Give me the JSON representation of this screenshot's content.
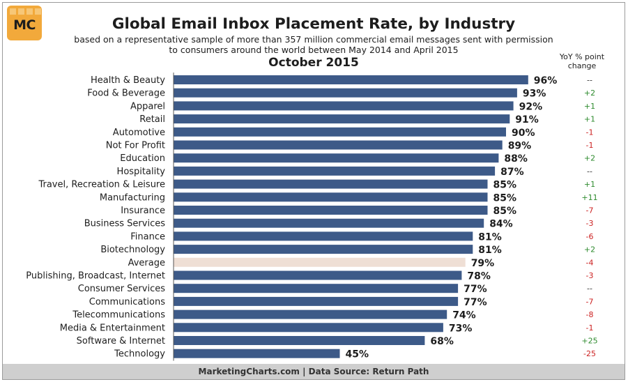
{
  "logo": {
    "text": "MC"
  },
  "title": "Global Email Inbox Placement Rate, by Industry",
  "subtitle_line1": "based on a representative sample of more than 357 million commercial email messages sent with permission",
  "subtitle_line2": "to consumers around the world between May 2014 and April 2015",
  "period": "October 2015",
  "yoy_header_line1": "YoY % point",
  "yoy_header_line2": "change",
  "footer": "MarketingCharts.com | Data Source: Return Path",
  "colors": {
    "bar": "#3d5a88",
    "average_bar": "#efdfd5",
    "positive": "#2e8b2e",
    "negative": "#cc2222",
    "neutral": "#333333"
  },
  "chart_data": {
    "type": "bar",
    "orientation": "horizontal",
    "categories": [
      "Health & Beauty",
      "Food & Beverage",
      "Apparel",
      "Retail",
      "Automotive",
      "Not For Profit",
      "Education",
      "Hospitality",
      "Travel, Recreation & Leisure",
      "Manufacturing",
      "Insurance",
      "Business Services",
      "Finance",
      "Biotechnology",
      "Average",
      "Publishing, Broadcast, Internet",
      "Consumer Services",
      "Communications",
      "Telecommunications",
      "Media & Entertainment",
      "Software & Internet",
      "Technology"
    ],
    "values": [
      96,
      93,
      92,
      91,
      90,
      89,
      88,
      87,
      85,
      85,
      85,
      84,
      81,
      81,
      79,
      78,
      77,
      77,
      74,
      73,
      68,
      45
    ],
    "value_labels": [
      "96%",
      "93%",
      "92%",
      "91%",
      "90%",
      "89%",
      "88%",
      "87%",
      "85%",
      "85%",
      "85%",
      "84%",
      "81%",
      "81%",
      "79%",
      "78%",
      "77%",
      "77%",
      "74%",
      "73%",
      "68%",
      "45%"
    ],
    "yoy_change": [
      "--",
      "+2",
      "+1",
      "+1",
      "-1",
      "-1",
      "+2",
      "--",
      "+1",
      "+11",
      "-7",
      "-3",
      "-6",
      "+2",
      "-4",
      "-3",
      "--",
      "-7",
      "-8",
      "-1",
      "+25",
      "-25"
    ],
    "highlight_category": "Average",
    "xlim": [
      0,
      100
    ],
    "grid": false,
    "legend": "none"
  }
}
